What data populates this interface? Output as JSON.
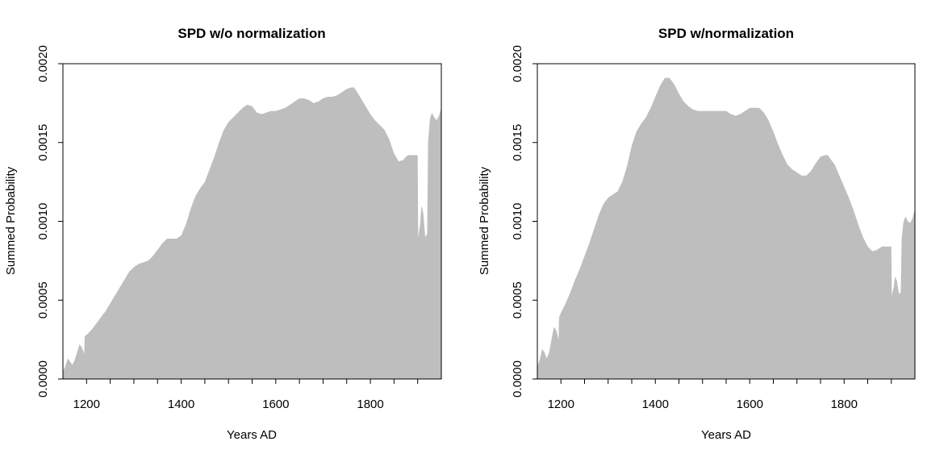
{
  "chart_data": [
    {
      "type": "area",
      "title": "SPD w/o normalization",
      "xlabel": "Years AD",
      "ylabel": "Summed Probability",
      "xlim": [
        1150,
        1950
      ],
      "ylim": [
        0,
        0.002
      ],
      "xticks": [
        1200,
        1400,
        1600,
        1800
      ],
      "xtick_labels": [
        "1200",
        "1400",
        "1600",
        "1800"
      ],
      "yticks": [
        0,
        0.0005,
        0.001,
        0.0015,
        0.002
      ],
      "ytick_labels": [
        "0.0000",
        "0.0005",
        "0.0010",
        "0.0015",
        "0.0020"
      ],
      "fill_color": "#bebebe",
      "grid": false,
      "x": [
        1150,
        1155,
        1160,
        1165,
        1170,
        1175,
        1180,
        1185,
        1190,
        1195,
        1196,
        1200,
        1210,
        1220,
        1230,
        1240,
        1250,
        1260,
        1270,
        1280,
        1290,
        1300,
        1310,
        1320,
        1330,
        1340,
        1350,
        1360,
        1370,
        1380,
        1390,
        1395,
        1400,
        1410,
        1420,
        1430,
        1440,
        1450,
        1460,
        1470,
        1480,
        1490,
        1500,
        1510,
        1520,
        1530,
        1540,
        1550,
        1560,
        1570,
        1580,
        1590,
        1600,
        1610,
        1620,
        1630,
        1640,
        1650,
        1660,
        1670,
        1680,
        1690,
        1700,
        1710,
        1720,
        1730,
        1740,
        1750,
        1760,
        1765,
        1770,
        1780,
        1790,
        1800,
        1810,
        1820,
        1830,
        1840,
        1850,
        1860,
        1870,
        1875,
        1880,
        1885,
        1890,
        1895,
        1900,
        1901,
        1905,
        1908,
        1912,
        1916,
        1920,
        1922,
        1926,
        1930,
        1935,
        1940,
        1945,
        1950
      ],
      "y": [
        5e-05,
        8e-05,
        0.00013,
        0.00011,
        9e-05,
        0.00012,
        0.00017,
        0.00022,
        0.0002,
        0.00016,
        0.00027,
        0.00028,
        0.00031,
        0.00035,
        0.00039,
        0.00043,
        0.00048,
        0.00053,
        0.00058,
        0.00063,
        0.00068,
        0.00071,
        0.00073,
        0.00074,
        0.00075,
        0.00078,
        0.00082,
        0.00086,
        0.00089,
        0.00089,
        0.00089,
        0.0009,
        0.00091,
        0.00098,
        0.00108,
        0.00116,
        0.00121,
        0.00125,
        0.00133,
        0.00141,
        0.0015,
        0.00158,
        0.00163,
        0.00166,
        0.00169,
        0.00172,
        0.00174,
        0.00173,
        0.00169,
        0.00168,
        0.00169,
        0.0017,
        0.0017,
        0.00171,
        0.00172,
        0.00174,
        0.00176,
        0.00178,
        0.00178,
        0.00177,
        0.00175,
        0.00176,
        0.00178,
        0.00179,
        0.00179,
        0.0018,
        0.00182,
        0.00184,
        0.00185,
        0.00185,
        0.00183,
        0.00178,
        0.00173,
        0.00168,
        0.00164,
        0.00161,
        0.00158,
        0.00152,
        0.00143,
        0.00138,
        0.00139,
        0.00141,
        0.00142,
        0.00142,
        0.00142,
        0.00142,
        0.00142,
        0.0009,
        0.00098,
        0.0011,
        0.00105,
        0.0009,
        0.00092,
        0.0015,
        0.00165,
        0.00169,
        0.00166,
        0.00164,
        0.00167,
        0.00172
      ]
    },
    {
      "type": "area",
      "title": "SPD w/normalization",
      "xlabel": "Years AD",
      "ylabel": "Summed Probability",
      "xlim": [
        1150,
        1950
      ],
      "ylim": [
        0,
        0.002
      ],
      "xticks": [
        1200,
        1400,
        1600,
        1800
      ],
      "xtick_labels": [
        "1200",
        "1400",
        "1600",
        "1800"
      ],
      "yticks": [
        0,
        0.0005,
        0.001,
        0.0015,
        0.002
      ],
      "ytick_labels": [
        "0.0000",
        "0.0005",
        "0.0010",
        "0.0015",
        "0.0020"
      ],
      "fill_color": "#bebebe",
      "grid": false,
      "x": [
        1150,
        1155,
        1160,
        1165,
        1170,
        1175,
        1180,
        1185,
        1190,
        1195,
        1196,
        1200,
        1210,
        1220,
        1230,
        1240,
        1250,
        1260,
        1270,
        1280,
        1290,
        1300,
        1310,
        1320,
        1330,
        1340,
        1350,
        1360,
        1370,
        1380,
        1390,
        1400,
        1410,
        1420,
        1430,
        1440,
        1445,
        1450,
        1460,
        1470,
        1480,
        1490,
        1500,
        1510,
        1520,
        1530,
        1540,
        1550,
        1560,
        1570,
        1580,
        1590,
        1600,
        1610,
        1620,
        1630,
        1640,
        1650,
        1660,
        1670,
        1680,
        1690,
        1700,
        1710,
        1720,
        1730,
        1740,
        1750,
        1760,
        1765,
        1770,
        1780,
        1790,
        1800,
        1810,
        1820,
        1830,
        1840,
        1850,
        1860,
        1870,
        1875,
        1880,
        1885,
        1890,
        1895,
        1900,
        1901,
        1905,
        1908,
        1912,
        1916,
        1920,
        1922,
        1926,
        1930,
        1935,
        1940,
        1945,
        1950
      ],
      "y": [
        8e-05,
        0.00012,
        0.00019,
        0.00017,
        0.00013,
        0.00017,
        0.00025,
        0.00033,
        0.00031,
        0.00025,
        0.00039,
        0.00042,
        0.00048,
        0.00055,
        0.00063,
        0.0007,
        0.00078,
        0.00086,
        0.00095,
        0.00104,
        0.00111,
        0.00115,
        0.00117,
        0.00119,
        0.00125,
        0.00135,
        0.00148,
        0.00157,
        0.00162,
        0.00166,
        0.00172,
        0.00179,
        0.00186,
        0.00191,
        0.00191,
        0.00187,
        0.00184,
        0.00181,
        0.00176,
        0.00173,
        0.00171,
        0.0017,
        0.0017,
        0.0017,
        0.0017,
        0.0017,
        0.0017,
        0.0017,
        0.00168,
        0.00167,
        0.00168,
        0.0017,
        0.00172,
        0.00172,
        0.00172,
        0.00169,
        0.00164,
        0.00157,
        0.00149,
        0.00142,
        0.00136,
        0.00133,
        0.00131,
        0.00129,
        0.00129,
        0.00132,
        0.00137,
        0.00141,
        0.00142,
        0.00142,
        0.0014,
        0.00136,
        0.00129,
        0.00122,
        0.00115,
        0.00107,
        0.00098,
        0.0009,
        0.00084,
        0.00081,
        0.00082,
        0.00083,
        0.00084,
        0.00084,
        0.00084,
        0.00084,
        0.00084,
        0.00053,
        0.00058,
        0.00065,
        0.00062,
        0.00054,
        0.00055,
        0.0009,
        0.001,
        0.00103,
        0.001,
        0.00099,
        0.00102,
        0.00108
      ]
    }
  ]
}
